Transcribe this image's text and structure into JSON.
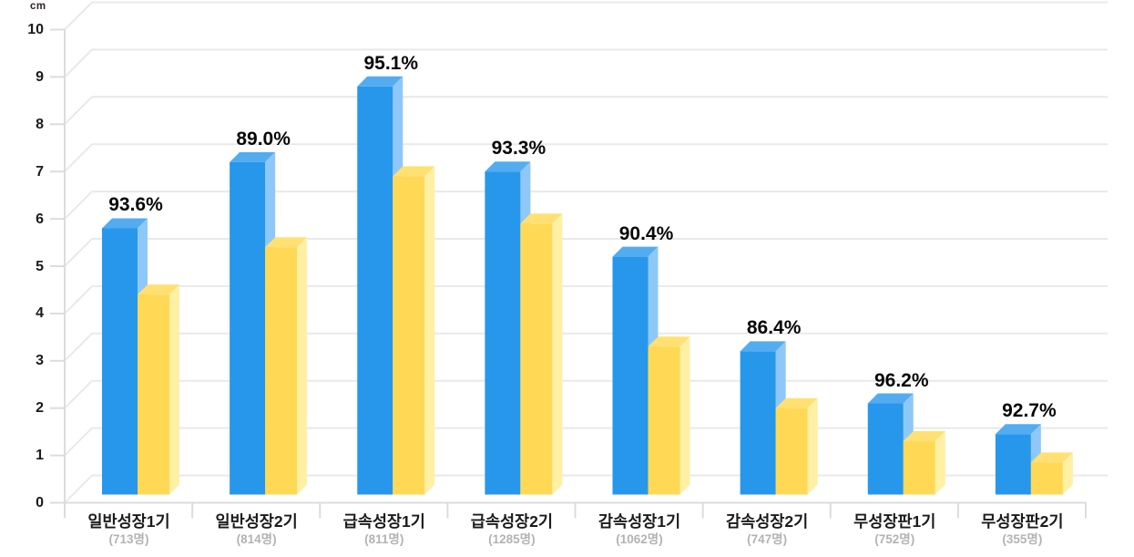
{
  "chart": {
    "unit_label": "cm"
  },
  "chart_data": {
    "type": "bar",
    "title": "",
    "unit_label": "cm",
    "ylim": [
      0,
      10
    ],
    "yticks": [
      0,
      1,
      2,
      3,
      4,
      5,
      6,
      7,
      8,
      9,
      10
    ],
    "grid": true,
    "legend": false,
    "style": "3d-columns",
    "categories": [
      "일반성장1기",
      "일반성장2기",
      "급속성장1기",
      "급속성장2기",
      "감속성장1기",
      "감속성장2기",
      "무성장판1기",
      "무성장판2기"
    ],
    "category_counts": [
      "(713명)",
      "(814명)",
      "(811명)",
      "(1285명)",
      "(1062명)",
      "(747명)",
      "(752명)",
      "(355명)"
    ],
    "percent_labels": [
      "93.6%",
      "89.0%",
      "95.1%",
      "93.3%",
      "90.4%",
      "86.4%",
      "96.2%",
      "92.7%"
    ],
    "series": [
      {
        "name": "blue-column",
        "values": [
          5.8,
          7.2,
          8.8,
          7.0,
          5.2,
          3.2,
          2.1,
          1.45
        ]
      },
      {
        "name": "yellow-column",
        "values": [
          4.4,
          5.4,
          6.9,
          5.9,
          3.3,
          2.0,
          1.3,
          0.85
        ]
      }
    ],
    "colors": {
      "blue_front": "#2797EB",
      "blue_top": "#54ACF0",
      "blue_side": "#8EC8F8",
      "yellow_front": "#FFD955",
      "yellow_top": "#FFE072",
      "yellow_side": "#FFF0A4",
      "gridline": "#E9E9E9",
      "axis": "#DCDCDC",
      "tick_text": "#1B1B1B",
      "count_text": "#B5B2B2",
      "percent_text": "#070707"
    }
  }
}
